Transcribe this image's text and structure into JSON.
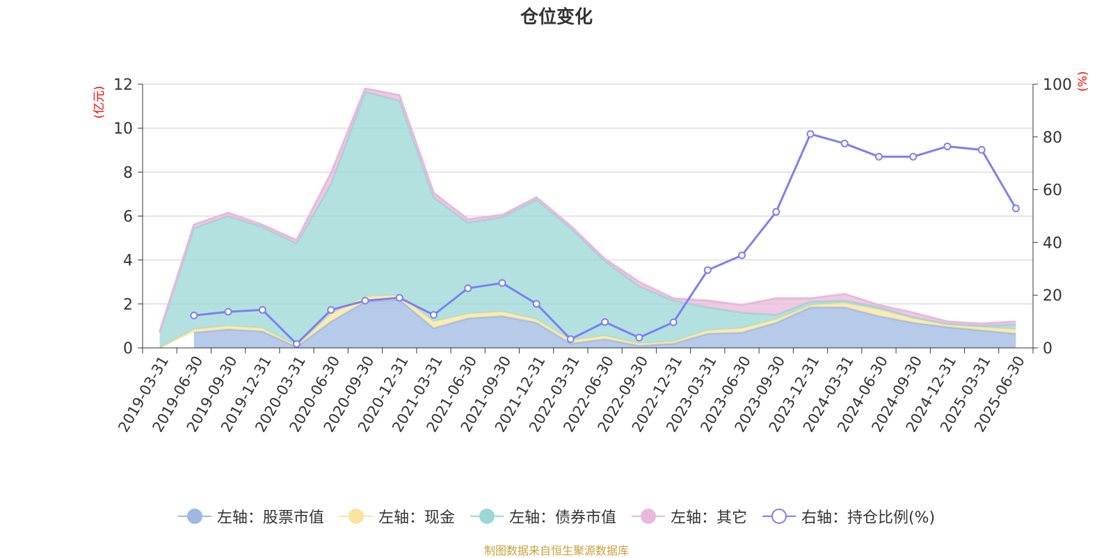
{
  "chart_data": {
    "type": "area",
    "title": "仓位变化",
    "y_left_label": "(亿元)",
    "y_right_label": "(%)",
    "y_left_range": [
      0,
      12
    ],
    "y_left_ticks": [
      "0",
      "2",
      "4",
      "6",
      "8",
      "10",
      "12"
    ],
    "y_right_range": [
      0,
      100
    ],
    "y_right_ticks": [
      "0",
      "20",
      "40",
      "60",
      "80",
      "100"
    ],
    "categories": [
      "2019-03-31",
      "2019-06-30",
      "2019-09-30",
      "2019-12-31",
      "2020-03-31",
      "2020-06-30",
      "2020-09-30",
      "2020-12-31",
      "2021-03-31",
      "2021-06-30",
      "2021-09-30",
      "2021-12-31",
      "2022-03-31",
      "2022-06-30",
      "2022-09-30",
      "2022-12-31",
      "2023-03-31",
      "2023-06-30",
      "2023-09-30",
      "2023-12-31",
      "2024-03-31",
      "2024-06-30",
      "2024-09-30",
      "2024-12-31",
      "2025-03-31",
      "2025-06-30"
    ],
    "series": [
      {
        "name": "左轴：股票市值",
        "axis": "left",
        "kind": "area",
        "color": "#9db8e2",
        "values": [
          null,
          0.7,
          0.85,
          0.75,
          0.05,
          1.2,
          2.1,
          2.2,
          0.9,
          1.35,
          1.45,
          1.15,
          0.2,
          0.4,
          0.1,
          0.2,
          0.65,
          0.7,
          1.15,
          1.85,
          1.85,
          1.45,
          1.15,
          0.95,
          0.8,
          0.65
        ]
      },
      {
        "name": "左轴：现金",
        "axis": "left",
        "kind": "area",
        "color": "#f9e4a0",
        "values": [
          0.0,
          0.15,
          0.15,
          0.15,
          0.05,
          0.35,
          0.25,
          0.2,
          0.3,
          0.2,
          0.2,
          0.15,
          0.15,
          0.15,
          0.1,
          0.1,
          0.15,
          0.2,
          0.15,
          0.1,
          0.2,
          0.3,
          0.2,
          0.1,
          0.15,
          0.2
        ]
      },
      {
        "name": "左轴：债券市值",
        "axis": "left",
        "kind": "area",
        "color": "#9ad7d6",
        "values": [
          0.7,
          4.6,
          5.0,
          4.6,
          4.65,
          5.9,
          9.3,
          8.85,
          5.65,
          4.15,
          4.3,
          5.45,
          5.1,
          3.4,
          2.6,
          1.85,
          1.05,
          0.7,
          0.2,
          0.15,
          0.1,
          0.1,
          0.05,
          0.05,
          0.05,
          0.2
        ]
      },
      {
        "name": "左轴：其它",
        "axis": "left",
        "kind": "area",
        "color": "#e8b9da",
        "values": [
          0.05,
          0.15,
          0.15,
          0.1,
          0.15,
          0.5,
          0.15,
          0.25,
          0.2,
          0.15,
          0.1,
          0.1,
          0.1,
          0.1,
          0.2,
          0.1,
          0.3,
          0.35,
          0.75,
          0.15,
          0.3,
          0.1,
          0.2,
          0.1,
          0.1,
          0.15
        ]
      },
      {
        "name": "右轴：持仓比例(%)",
        "axis": "right",
        "kind": "line",
        "color": "#7b7ff2",
        "values": [
          null,
          12.3,
          13.7,
          14.4,
          1.5,
          14.4,
          17.9,
          19.0,
          12.5,
          22.6,
          24.6,
          16.7,
          3.3,
          9.8,
          3.9,
          9.7,
          29.5,
          35.1,
          51.6,
          81.1,
          77.5,
          72.5,
          72.5,
          76.4,
          75.1,
          52.9
        ]
      }
    ]
  },
  "source_note": "制图数据来自恒生聚源数据库"
}
